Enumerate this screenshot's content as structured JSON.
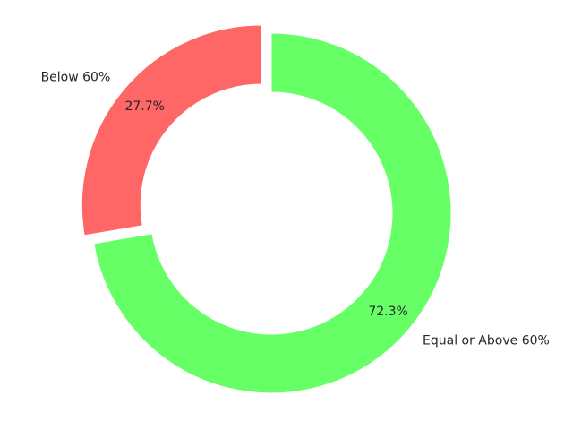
{
  "chart_data": {
    "type": "pie",
    "style": "donut",
    "slices": [
      {
        "label": "Below 60%",
        "value": 27.7,
        "pct_label": "27.7%",
        "color": "#ff6666",
        "exploded": true
      },
      {
        "label": "Equal or Above 60%",
        "value": 72.3,
        "pct_label": "72.3%",
        "color": "#66ff66",
        "exploded": false
      }
    ],
    "start_angle_deg": 90,
    "direction": "counterclockwise",
    "title": "",
    "legend": false
  }
}
